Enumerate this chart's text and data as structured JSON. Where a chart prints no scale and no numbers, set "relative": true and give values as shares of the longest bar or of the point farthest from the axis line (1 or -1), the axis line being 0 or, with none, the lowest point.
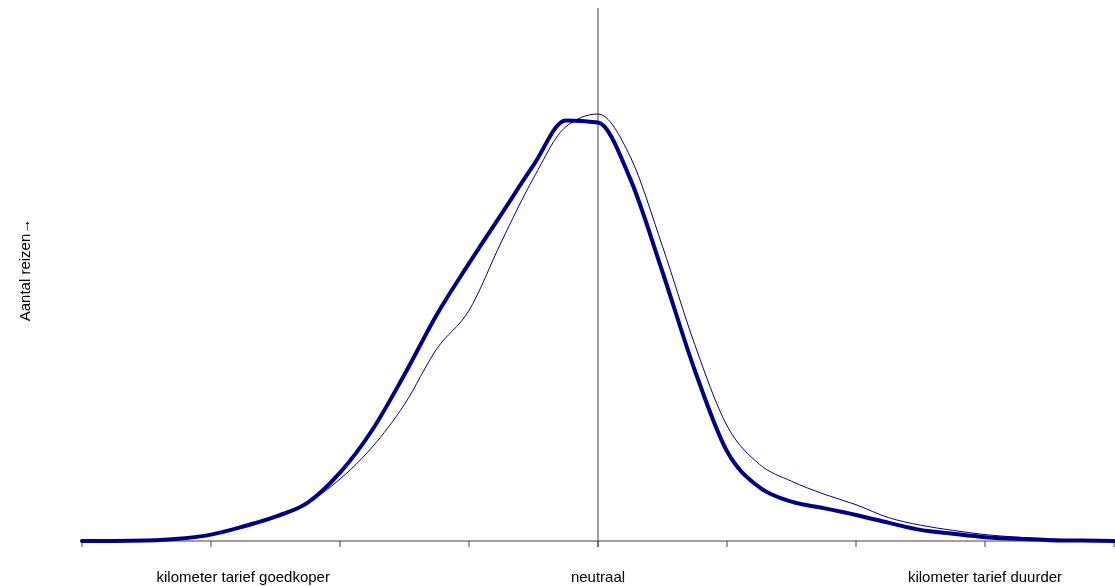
{
  "chart_data": {
    "type": "line",
    "relative": true,
    "ylabel": "Aantal reizen→",
    "categories": [
      null,
      null,
      null,
      null,
      null,
      "kilometer tarief goedkoper",
      null,
      null,
      null,
      null,
      null,
      null,
      null,
      null,
      null,
      null,
      "neutraal",
      null,
      null,
      null,
      null,
      null,
      null,
      null,
      null,
      null,
      null,
      null,
      "kilometer tarief duurder",
      null,
      null,
      null,
      null
    ],
    "ref_lines": [
      {
        "axis": "x",
        "value": "neutraal",
        "color": "#404040"
      }
    ],
    "marker": "none",
    "line_style": "solid",
    "series": [
      {
        "color": "#000080",
        "values": [
          0,
          0,
          0.001,
          0.005,
          0.015,
          0.034,
          0.057,
          0.09,
          0.16,
          0.26,
          0.39,
          0.53,
          0.65,
          0.765,
          0.88,
          0.985,
          0.98,
          0.848,
          0.63,
          0.4,
          0.21,
          0.126,
          0.092,
          0.077,
          0.061,
          0.043,
          0.026,
          0.017,
          0.009,
          0.005,
          0.002,
          0.001,
          0
        ]
      },
      {
        "color": "#000080",
        "values": [
          0,
          0,
          0.001,
          0.005,
          0.015,
          0.034,
          0.057,
          0.09,
          0.145,
          0.22,
          0.32,
          0.45,
          0.54,
          0.7,
          0.85,
          0.97,
          1.0,
          0.9,
          0.69,
          0.46,
          0.27,
          0.18,
          0.14,
          0.11,
          0.085,
          0.055,
          0.037,
          0.025,
          0.015,
          0.009,
          0.005,
          0.002,
          0
        ]
      }
    ]
  }
}
